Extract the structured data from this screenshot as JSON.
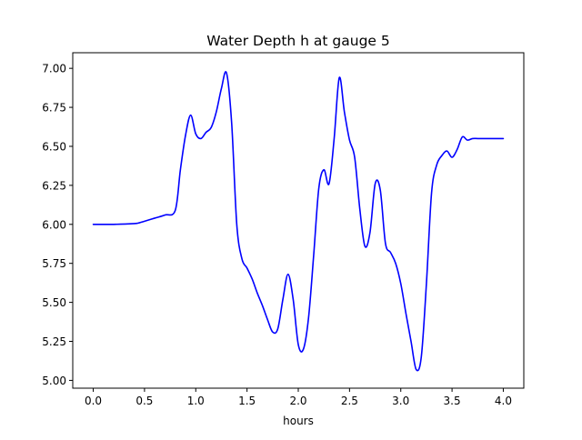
{
  "chart_data": {
    "type": "line",
    "title": "Water Depth h at gauge 5",
    "xlabel": "hours",
    "ylabel": "",
    "xlim": [
      -0.2,
      4.2
    ],
    "ylim": [
      4.95,
      7.1
    ],
    "x_ticks": [
      0.0,
      0.5,
      1.0,
      1.5,
      2.0,
      2.5,
      3.0,
      3.5,
      4.0
    ],
    "x_tick_labels": [
      "0.0",
      "0.5",
      "1.0",
      "1.5",
      "2.0",
      "2.5",
      "3.0",
      "3.5",
      "4.0"
    ],
    "y_ticks": [
      5.0,
      5.25,
      5.5,
      5.75,
      6.0,
      6.25,
      6.5,
      6.75,
      7.0
    ],
    "y_tick_labels": [
      "5.00",
      "5.25",
      "5.50",
      "5.75",
      "6.00",
      "6.25",
      "6.50",
      "6.75",
      "7.00"
    ],
    "grid": false,
    "legend": "none",
    "series": [
      {
        "color": "#0000ff",
        "x": [
          0.0,
          0.2,
          0.4,
          0.45,
          0.5,
          0.6,
          0.7,
          0.8,
          0.85,
          0.9,
          0.95,
          1.0,
          1.05,
          1.1,
          1.15,
          1.2,
          1.25,
          1.3,
          1.35,
          1.4,
          1.45,
          1.5,
          1.55,
          1.6,
          1.65,
          1.7,
          1.75,
          1.8,
          1.85,
          1.9,
          1.95,
          2.0,
          2.05,
          2.1,
          2.15,
          2.2,
          2.25,
          2.3,
          2.35,
          2.4,
          2.45,
          2.5,
          2.55,
          2.6,
          2.65,
          2.7,
          2.75,
          2.8,
          2.85,
          2.9,
          2.95,
          3.0,
          3.05,
          3.1,
          3.15,
          3.2,
          3.25,
          3.3,
          3.35,
          3.4,
          3.45,
          3.5,
          3.55,
          3.6,
          3.65,
          3.7,
          3.75,
          3.8,
          3.85,
          3.9,
          3.95,
          4.0
        ],
        "y": [
          6.0,
          6.0,
          6.005,
          6.01,
          6.02,
          6.04,
          6.06,
          6.09,
          6.35,
          6.57,
          6.7,
          6.58,
          6.55,
          6.59,
          6.62,
          6.72,
          6.87,
          6.97,
          6.65,
          6.0,
          5.78,
          5.72,
          5.65,
          5.56,
          5.48,
          5.39,
          5.31,
          5.33,
          5.52,
          5.68,
          5.52,
          5.23,
          5.2,
          5.4,
          5.8,
          6.23,
          6.35,
          6.26,
          6.55,
          6.94,
          6.72,
          6.54,
          6.43,
          6.1,
          5.86,
          5.95,
          6.26,
          6.22,
          5.88,
          5.82,
          5.75,
          5.62,
          5.43,
          5.25,
          5.07,
          5.15,
          5.62,
          6.2,
          6.38,
          6.44,
          6.47,
          6.43,
          6.48,
          6.56,
          6.54,
          6.55,
          6.55,
          6.55,
          6.55,
          6.55,
          6.55,
          6.55
        ]
      }
    ]
  }
}
